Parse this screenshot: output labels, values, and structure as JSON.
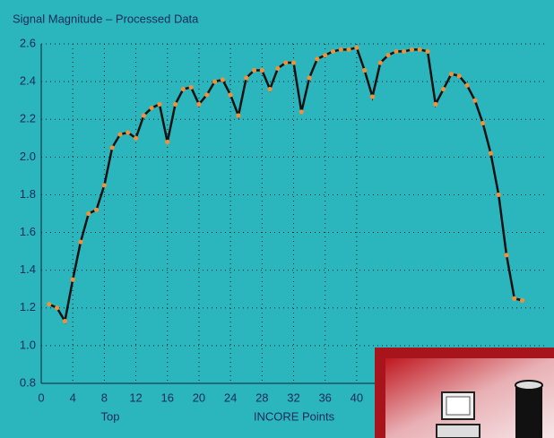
{
  "chart_data": {
    "type": "line",
    "title": "Signal Magnitude – Processed Data",
    "x_label_left": "Top",
    "x_label": "INCORE Points",
    "x": [
      1,
      2,
      3,
      4,
      5,
      6,
      7,
      8,
      9,
      10,
      11,
      12,
      13,
      14,
      15,
      16,
      17,
      18,
      19,
      20,
      21,
      22,
      23,
      24,
      25,
      26,
      27,
      28,
      29,
      30,
      31,
      32,
      33,
      34,
      35,
      36,
      37,
      38,
      39,
      40,
      41,
      42,
      43,
      44,
      45,
      46,
      47,
      48,
      49,
      50,
      51,
      52,
      53,
      54,
      55,
      56,
      57,
      58,
      59,
      60,
      61
    ],
    "series": [
      {
        "color": "#111111",
        "marker_color": "#f0903a",
        "values": [
          1.22,
          1.2,
          1.13,
          1.35,
          1.55,
          1.7,
          1.72,
          1.85,
          2.05,
          2.12,
          2.13,
          2.1,
          2.22,
          2.26,
          2.28,
          2.08,
          2.28,
          2.36,
          2.37,
          2.28,
          2.33,
          2.4,
          2.41,
          2.33,
          2.22,
          2.42,
          2.46,
          2.46,
          2.36,
          2.47,
          2.5,
          2.5,
          2.24,
          2.42,
          2.52,
          2.54,
          2.56,
          2.57,
          2.57,
          2.58,
          2.46,
          2.32,
          2.5,
          2.54,
          2.56,
          2.56,
          2.57,
          2.57,
          2.56,
          2.28,
          2.36,
          2.44,
          2.43,
          2.38,
          2.3,
          2.18,
          2.02,
          1.8,
          1.48,
          1.25,
          1.24
        ]
      }
    ],
    "xlim": [
      0,
      64
    ],
    "xticks": [
      0,
      4,
      8,
      12,
      16,
      20,
      24,
      28,
      32,
      36,
      40
    ],
    "ylim": [
      0.8,
      2.6
    ],
    "yticks": [
      0.8,
      {
        "value": 1,
        "label": "1.0"
      },
      1.2,
      1.4,
      1.6,
      1.8,
      {
        "value": 2,
        "label": "2.0"
      },
      2.2,
      2.4,
      2.6
    ],
    "grid": true,
    "background": "#2bb5bd"
  }
}
